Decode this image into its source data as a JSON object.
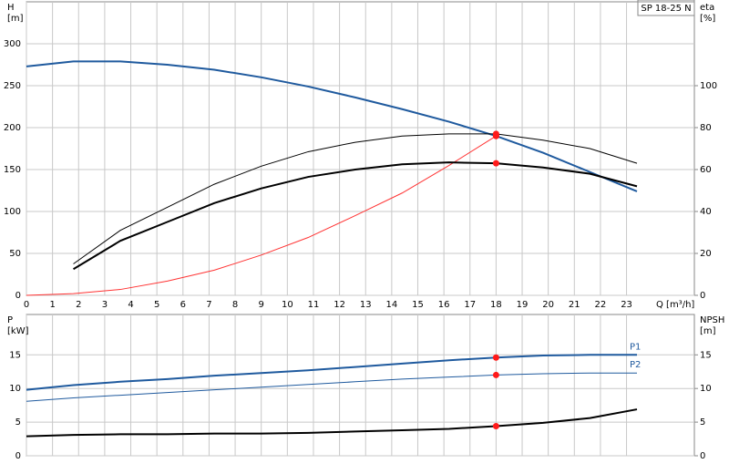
{
  "chart_data": [
    {
      "type": "line",
      "annotation": "SP 18-25 N",
      "ylabel": [
        "H",
        "[m]"
      ],
      "y2label": [
        "eta",
        "[%]"
      ],
      "xlabel": "Q [m³/h]",
      "x": [
        0,
        1.8,
        3.6,
        5.4,
        7.2,
        9,
        10.8,
        12.6,
        14.4,
        16.2,
        18,
        19.8,
        21.6,
        23.4
      ],
      "xlim": [
        0,
        25.6
      ],
      "xticks": [
        0,
        1,
        2,
        3,
        4,
        5,
        6,
        7,
        8,
        9,
        10,
        11,
        12,
        13,
        14,
        15,
        16,
        17,
        18,
        19,
        20,
        21,
        22,
        23
      ],
      "ylim": [
        0,
        350
      ],
      "yticks": [
        0,
        50,
        100,
        150,
        200,
        250,
        300
      ],
      "y2lim": [
        0,
        140
      ],
      "y2ticks": [
        0,
        20,
        40,
        60,
        80,
        100
      ],
      "grid": true,
      "duty_point": {
        "x": 18,
        "color": "#ff1a1a"
      },
      "series": [
        {
          "color": "#1f5a9e",
          "width": 2,
          "values": [
            273,
            279,
            279,
            275,
            269,
            260,
            249,
            236,
            222,
            207,
            190,
            170,
            147,
            124
          ]
        },
        {
          "color": "#ff3333",
          "width": 1,
          "values": [
            0,
            2,
            7,
            17,
            30,
            48,
            69,
            95,
            122,
            155,
            190,
            null,
            null,
            null
          ]
        },
        {
          "color": "#000000",
          "width": 1,
          "axis": "y2",
          "values": [
            null,
            15,
            31,
            42,
            53,
            61.6,
            68.5,
            73,
            76,
            77,
            77,
            74,
            70,
            63
          ]
        },
        {
          "color": "#000000",
          "width": 2,
          "axis": "y2",
          "values": [
            null,
            12.5,
            26,
            35,
            44,
            51,
            56.5,
            60,
            62.5,
            63.4,
            63,
            61,
            58,
            52
          ]
        }
      ]
    },
    {
      "type": "line",
      "ylabel": [
        "P",
        "[kW]"
      ],
      "y2label": [
        "NPSH",
        "[m]"
      ],
      "x": [
        0,
        1.8,
        3.6,
        5.4,
        7.2,
        9,
        10.8,
        12.6,
        14.4,
        16.2,
        18,
        19.8,
        21.6,
        23.4
      ],
      "xlim": [
        0,
        25.6
      ],
      "xticks": [
        0,
        1,
        2,
        3,
        4,
        5,
        6,
        7,
        8,
        9,
        10,
        11,
        12,
        13,
        14,
        15,
        16,
        17,
        18,
        19,
        20,
        21,
        22,
        23
      ],
      "ylim": [
        0,
        21
      ],
      "yticks": [
        0,
        5,
        10,
        15
      ],
      "y2lim": [
        0,
        21
      ],
      "y2ticks": [
        0,
        5,
        10,
        15
      ],
      "grid": true,
      "duty_point": {
        "x": 18,
        "color": "#ff1a1a"
      },
      "series": [
        {
          "name": "P1",
          "color": "#1f5a9e",
          "width": 2,
          "values": [
            9.8,
            10.5,
            11,
            11.4,
            11.9,
            12.3,
            12.7,
            13.2,
            13.7,
            14.2,
            14.6,
            14.9,
            15,
            15
          ]
        },
        {
          "name": "P2",
          "color": "#1f5a9e",
          "width": 1,
          "values": [
            8.1,
            8.6,
            9,
            9.4,
            9.8,
            10.2,
            10.6,
            11,
            11.4,
            11.7,
            12,
            12.2,
            12.3,
            12.3
          ]
        },
        {
          "color": "#000000",
          "width": 2,
          "axis": "y2",
          "values": [
            2.9,
            3.1,
            3.2,
            3.2,
            3.3,
            3.3,
            3.4,
            3.6,
            3.8,
            4.0,
            4.4,
            4.9,
            5.6,
            6.9
          ]
        }
      ]
    }
  ]
}
